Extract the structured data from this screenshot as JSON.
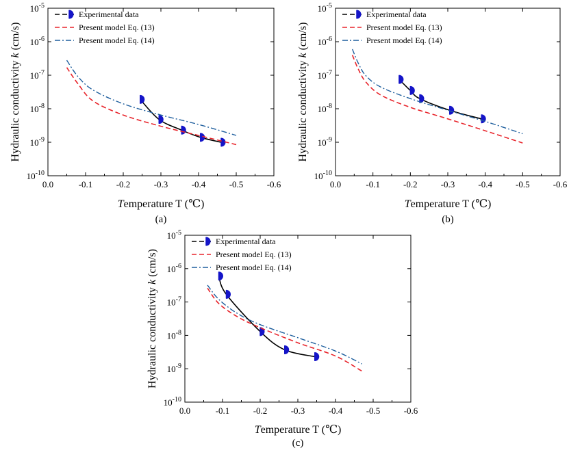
{
  "figure": {
    "x_axis_title": "Temperature T (℃)",
    "y_axis_title": "Hydraulic conductivity k (cm/s)",
    "legend": [
      "Experimental data",
      "Present model Eq. (13)",
      "Present model Eq. (14)"
    ],
    "colors": {
      "experimental": "#000000",
      "marker": "#1515c8",
      "eq13": "#e8242b",
      "eq14": "#1f5f9e"
    }
  },
  "chart_data": [
    {
      "type": "line",
      "panel_label": "(a)",
      "xlabel": "Temperature T (℃)",
      "ylabel": "Hydraulic conductivity k (cm/s)",
      "xlim": [
        0.0,
        -0.6
      ],
      "ylim": [
        1e-10,
        1e-05
      ],
      "yscale": "log",
      "xticks": [
        "0.0",
        "-0.1",
        "-0.2",
        "-0.3",
        "-0.4",
        "-0.5",
        "-0.6"
      ],
      "yticks": [
        "10^-10",
        "10^-9",
        "10^-8",
        "10^-7",
        "10^-6",
        "10^-5"
      ],
      "legend_position": "top-left",
      "series": [
        {
          "name": "Experimental data",
          "style": "solid-with-markers",
          "x": [
            -0.245,
            -0.295,
            -0.355,
            -0.405,
            -0.46
          ],
          "y": [
            1.9e-08,
            4.8e-09,
            2.3e-09,
            1.4e-09,
            1e-09
          ]
        },
        {
          "name": "Present model Eq. (13)",
          "style": "dashed",
          "x": [
            -0.05,
            -0.08,
            -0.12,
            -0.2,
            -0.3,
            -0.4,
            -0.5
          ],
          "y": [
            1.7e-07,
            5.5e-08,
            1.7e-08,
            6.5e-09,
            3e-09,
            1.6e-09,
            8.5e-10
          ]
        },
        {
          "name": "Present model Eq. (14)",
          "style": "dash-dot",
          "x": [
            -0.05,
            -0.08,
            -0.12,
            -0.2,
            -0.3,
            -0.4,
            -0.5
          ],
          "y": [
            2.8e-07,
            9e-08,
            3.6e-08,
            1.4e-08,
            6.5e-09,
            3.4e-09,
            1.6e-09
          ]
        }
      ]
    },
    {
      "type": "line",
      "panel_label": "(b)",
      "xlabel": "Temperature T (℃)",
      "ylabel": "Hydraulic conductivity k (cm/s)",
      "xlim": [
        0.0,
        -0.6
      ],
      "ylim": [
        1e-10,
        1e-05
      ],
      "yscale": "log",
      "xticks": [
        "0.0",
        "-0.1",
        "-0.2",
        "-0.3",
        "-0.4",
        "-0.5",
        "-0.6"
      ],
      "yticks": [
        "10^-10",
        "10^-9",
        "10^-8",
        "10^-7",
        "10^-6",
        "10^-5"
      ],
      "legend_position": "top-left",
      "series": [
        {
          "name": "Experimental data",
          "style": "solid-with-markers",
          "x": [
            -0.17,
            -0.2,
            -0.225,
            -0.305,
            -0.39
          ],
          "y": [
            7.5e-08,
            3.5e-08,
            2e-08,
            9e-09,
            5e-09
          ]
        },
        {
          "name": "Present model Eq. (13)",
          "style": "dashed",
          "x": [
            -0.045,
            -0.06,
            -0.08,
            -0.12,
            -0.2,
            -0.3,
            -0.4,
            -0.5
          ],
          "y": [
            4e-07,
            1.6e-07,
            6.5e-08,
            2.6e-08,
            1.1e-08,
            5e-09,
            2.2e-09,
            9.5e-10
          ]
        },
        {
          "name": "Present model Eq. (14)",
          "style": "dash-dot",
          "x": [
            -0.045,
            -0.06,
            -0.08,
            -0.12,
            -0.2,
            -0.3,
            -0.4,
            -0.5
          ],
          "y": [
            6e-07,
            2.4e-07,
            1e-07,
            4.5e-08,
            2e-08,
            9e-09,
            4.2e-09,
            1.8e-09
          ]
        }
      ]
    },
    {
      "type": "line",
      "panel_label": "(c)",
      "xlabel": "Temperature T (℃)",
      "ylabel": "Hydraulic conductivity k (cm/s)",
      "xlim": [
        0.0,
        -0.6
      ],
      "ylim": [
        1e-10,
        1e-05
      ],
      "yscale": "log",
      "xticks": [
        "0.0",
        "-0.1",
        "-0.2",
        "-0.3",
        "-0.4",
        "-0.5",
        "-0.6"
      ],
      "yticks": [
        "10^-10",
        "10^-9",
        "10^-8",
        "10^-7",
        "10^-6",
        "10^-5"
      ],
      "legend_position": "top-left",
      "series": [
        {
          "name": "Experimental data",
          "style": "solid-with-markers",
          "x": [
            -0.09,
            -0.11,
            -0.2,
            -0.265,
            -0.345
          ],
          "y": [
            6e-07,
            1.7e-07,
            1.3e-08,
            3.7e-09,
            2.3e-09
          ]
        },
        {
          "name": "Present model Eq. (13)",
          "style": "dashed",
          "x": [
            -0.06,
            -0.09,
            -0.14,
            -0.2,
            -0.3,
            -0.4,
            -0.47
          ],
          "y": [
            2.6e-07,
            9e-08,
            3.6e-08,
            1.7e-08,
            6e-09,
            2.4e-09,
            8.5e-10
          ]
        },
        {
          "name": "Present model Eq. (14)",
          "style": "dash-dot",
          "x": [
            -0.06,
            -0.09,
            -0.14,
            -0.2,
            -0.3,
            -0.4,
            -0.47
          ],
          "y": [
            3.2e-07,
            1.2e-07,
            4.5e-08,
            2.1e-08,
            8.5e-09,
            3.4e-09,
            1.4e-09
          ]
        }
      ]
    }
  ]
}
